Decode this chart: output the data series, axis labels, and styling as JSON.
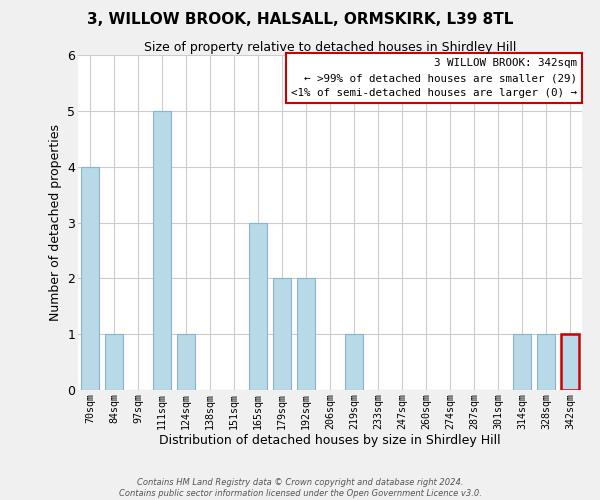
{
  "title": "3, WILLOW BROOK, HALSALL, ORMSKIRK, L39 8TL",
  "subtitle": "Size of property relative to detached houses in Shirdley Hill",
  "xlabel": "Distribution of detached houses by size in Shirdley Hill",
  "ylabel": "Number of detached properties",
  "bin_labels": [
    "70sqm",
    "84sqm",
    "97sqm",
    "111sqm",
    "124sqm",
    "138sqm",
    "151sqm",
    "165sqm",
    "179sqm",
    "192sqm",
    "206sqm",
    "219sqm",
    "233sqm",
    "247sqm",
    "260sqm",
    "274sqm",
    "287sqm",
    "301sqm",
    "314sqm",
    "328sqm",
    "342sqm"
  ],
  "bar_heights": [
    4,
    1,
    0,
    5,
    1,
    0,
    0,
    3,
    2,
    2,
    0,
    1,
    0,
    0,
    0,
    0,
    0,
    0,
    1,
    1,
    1
  ],
  "bar_color": "#b8d9e8",
  "bar_edge_color": "#8ab4cc",
  "highlight_index": 20,
  "highlight_edge_color": "#cc0000",
  "ylim": [
    0,
    6
  ],
  "yticks": [
    0,
    1,
    2,
    3,
    4,
    5,
    6
  ],
  "legend_title": "3 WILLOW BROOK: 342sqm",
  "legend_line1": "← >99% of detached houses are smaller (29)",
  "legend_line2": "<1% of semi-detached houses are larger (0) →",
  "legend_box_edge_color": "#cc0000",
  "footer_line1": "Contains HM Land Registry data © Crown copyright and database right 2024.",
  "footer_line2": "Contains public sector information licensed under the Open Government Licence v3.0.",
  "background_color": "#f0f0f0",
  "plot_background_color": "#ffffff",
  "grid_color": "#cccccc",
  "title_fontsize": 11,
  "subtitle_fontsize": 9,
  "bar_width": 0.75
}
